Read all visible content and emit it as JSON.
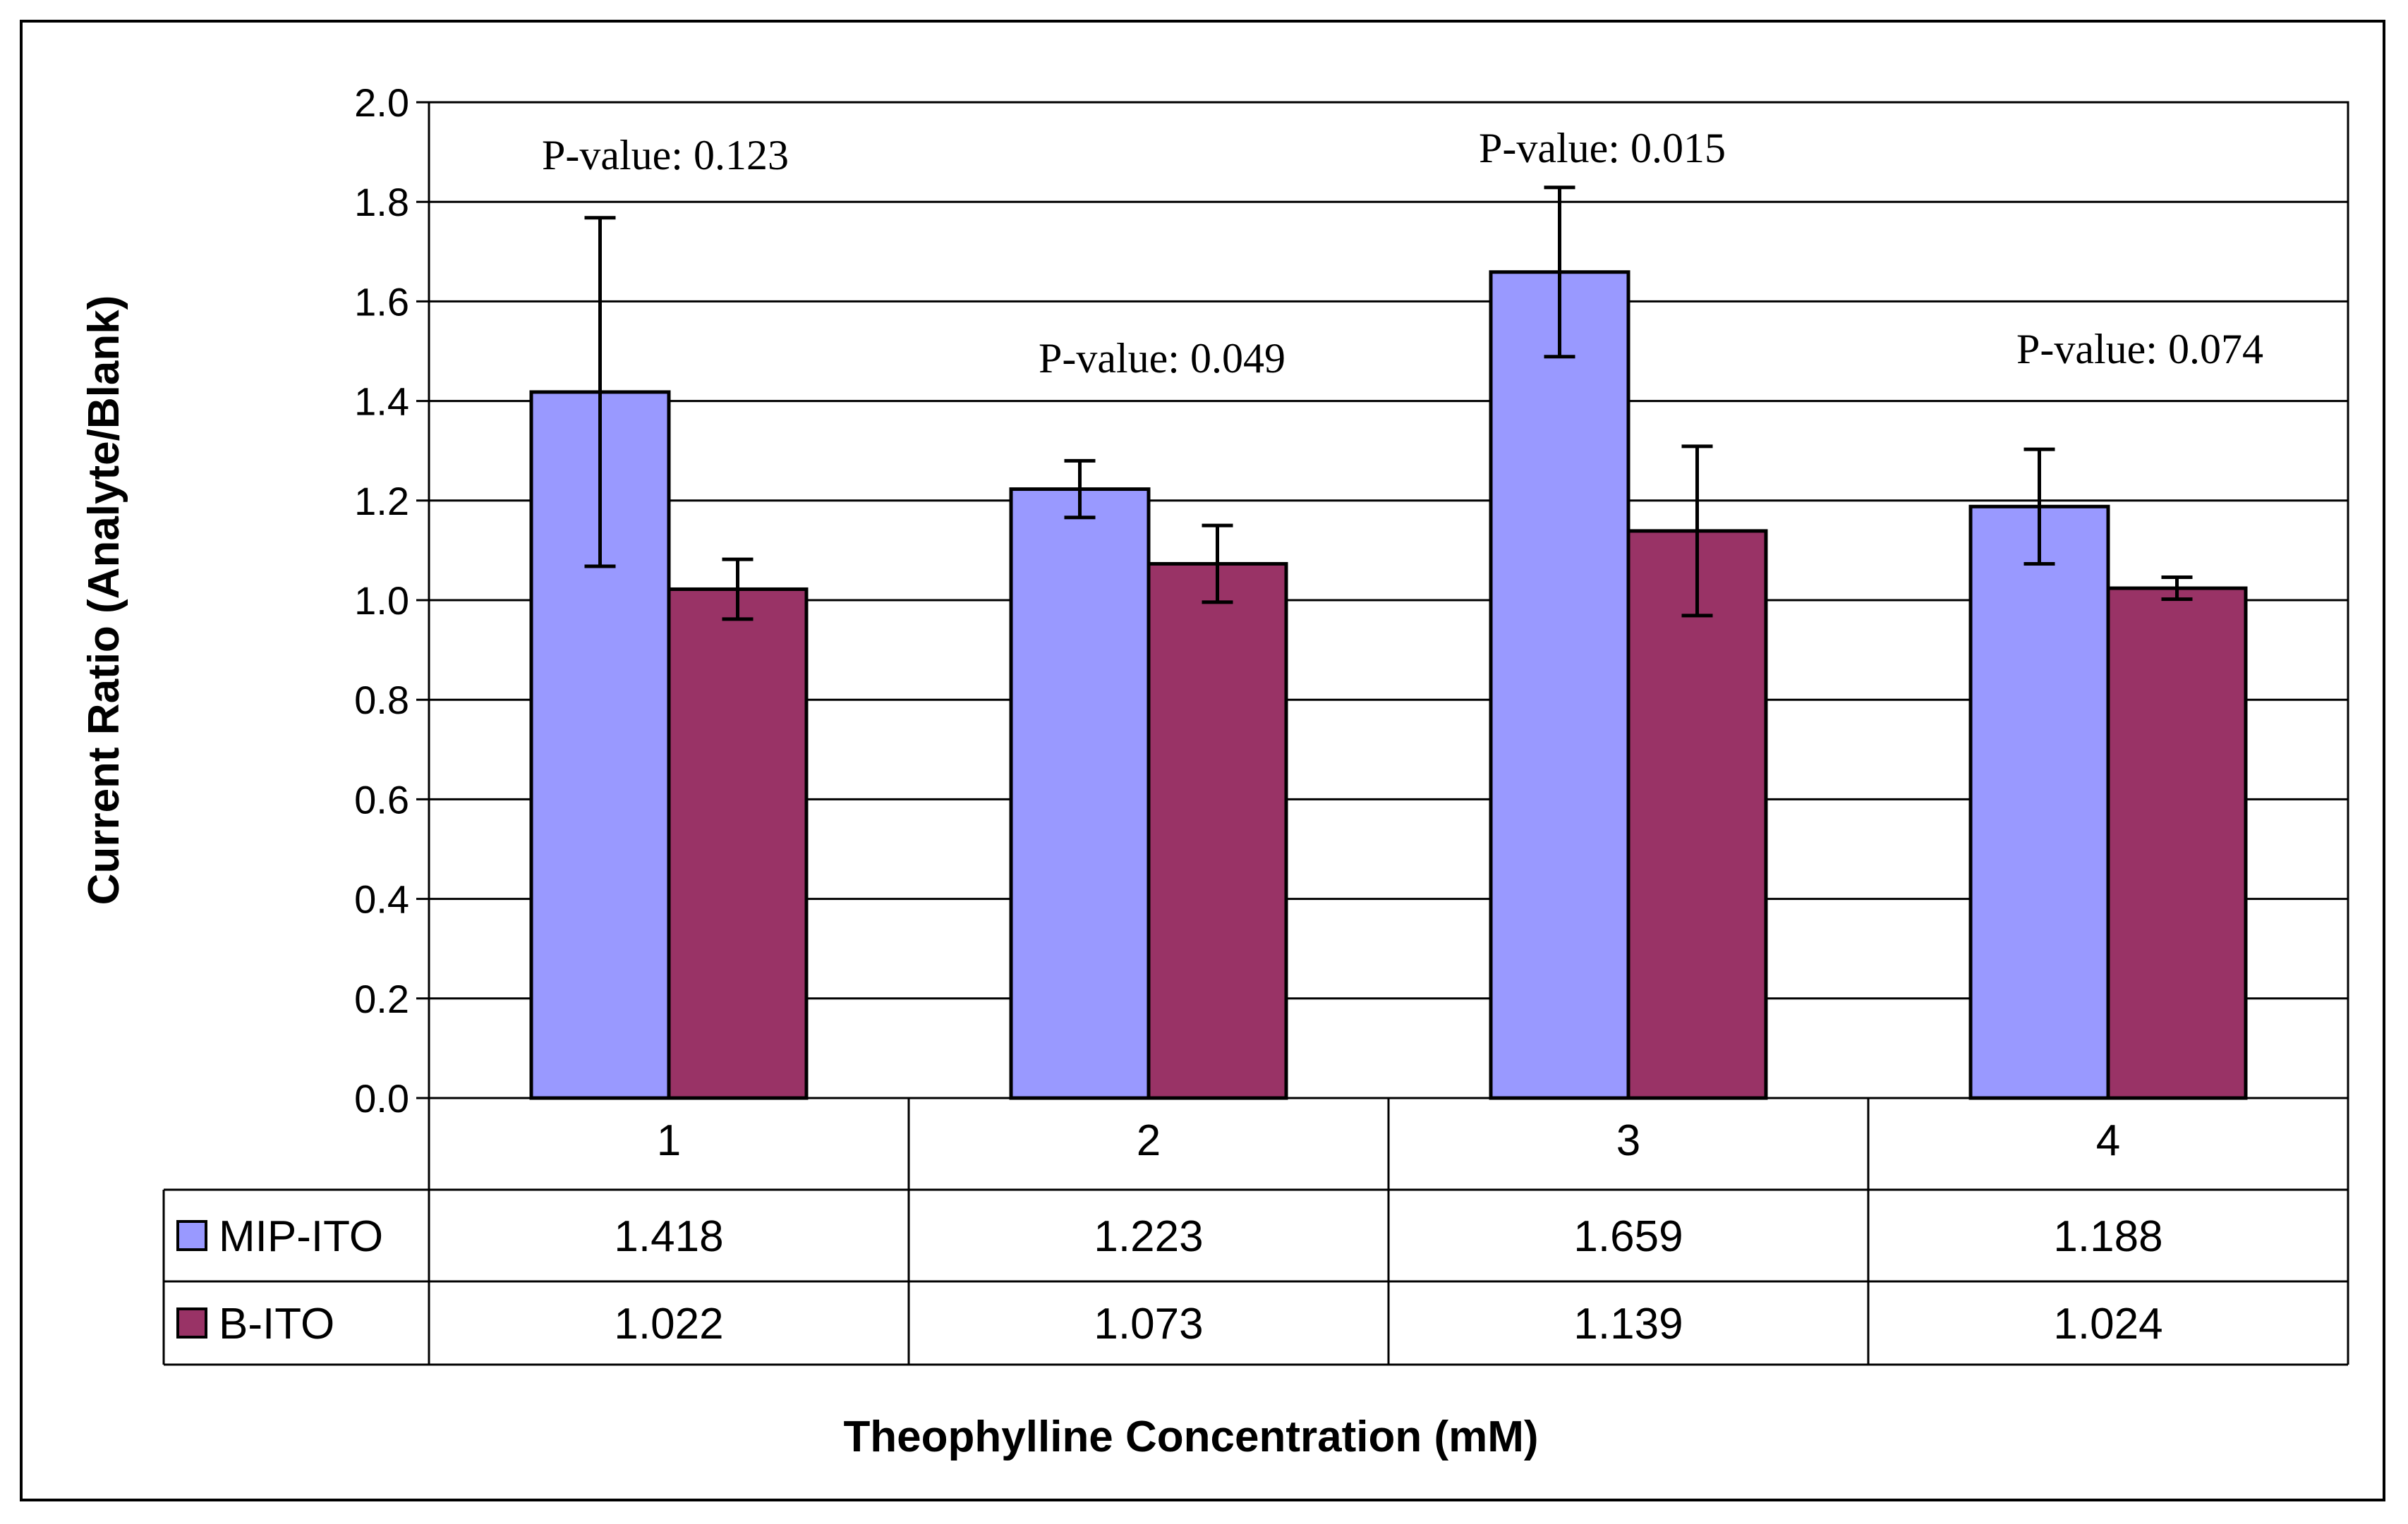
{
  "chart_data": {
    "type": "bar",
    "title": "",
    "xlabel": "Theophylline Concentration (mM)",
    "ylabel": "Current Ratio (Analyte/Blank)",
    "ylim": [
      0,
      2.0
    ],
    "yticks": [
      "0.0",
      "0.2",
      "0.4",
      "0.6",
      "0.8",
      "1.0",
      "1.2",
      "1.4",
      "1.6",
      "1.8",
      "2.0"
    ],
    "categories": [
      "1",
      "2",
      "3",
      "4"
    ],
    "series": [
      {
        "name": "MIP-ITO",
        "color": "#9999ff",
        "values": [
          1.418,
          1.223,
          1.659,
          1.188
        ],
        "value_labels": [
          "1.418",
          "1.223",
          "1.659",
          "1.188"
        ],
        "error": [
          0.35,
          0.057,
          0.17,
          0.115
        ]
      },
      {
        "name": "B-ITO",
        "color": "#993366",
        "values": [
          1.022,
          1.073,
          1.139,
          1.024
        ],
        "value_labels": [
          "1.022",
          "1.073",
          "1.139",
          "1.024"
        ],
        "error": [
          0.06,
          0.077,
          0.17,
          0.022
        ]
      }
    ],
    "annotations": [
      "P-value: 0.123",
      "P-value: 0.049",
      "P-value: 0.015",
      "P-value: 0.074"
    ],
    "grid": true,
    "legend": "data-table-left"
  }
}
